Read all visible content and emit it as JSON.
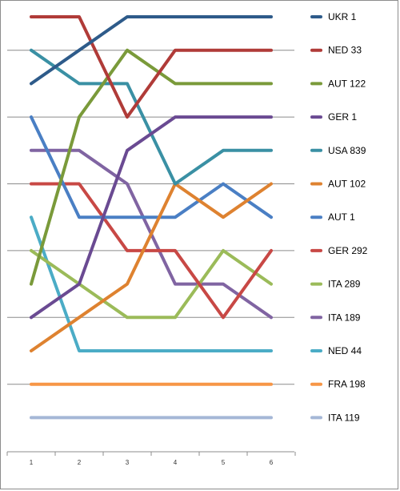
{
  "chart_data": {
    "type": "line",
    "title": "",
    "xlabel": "",
    "ylabel": "",
    "x": [
      1,
      2,
      3,
      4,
      5,
      6
    ],
    "x_tick_labels": [
      "1",
      "2",
      "3",
      "4",
      "5",
      "6"
    ],
    "ylim": [
      1,
      13
    ],
    "y_inverted": true,
    "grid": "horizontal",
    "legend_position": "right",
    "series": [
      {
        "name": "UKR 1",
        "color": "#2e5b8a",
        "values": [
          3,
          2,
          1,
          1,
          1,
          1
        ]
      },
      {
        "name": "NED 33",
        "color": "#b03b38",
        "values": [
          1,
          1,
          4,
          2,
          2,
          2
        ]
      },
      {
        "name": "AUT 122",
        "color": "#7a9a3a",
        "values": [
          9,
          4,
          2,
          3,
          3,
          3
        ]
      },
      {
        "name": "GER 1",
        "color": "#6a4a92",
        "values": [
          10,
          9,
          5,
          4,
          4,
          4
        ]
      },
      {
        "name": "USA 839",
        "color": "#3a90a4",
        "values": [
          2,
          3,
          3,
          6,
          5,
          5
        ]
      },
      {
        "name": "AUT 102",
        "color": "#de8230",
        "values": [
          11,
          10,
          9,
          6,
          7,
          6
        ]
      },
      {
        "name": "AUT 1",
        "color": "#4a7fc4",
        "values": [
          4,
          7,
          7,
          7,
          6,
          7
        ]
      },
      {
        "name": "GER 292",
        "color": "#c84845",
        "values": [
          6,
          6,
          8,
          8,
          10,
          8
        ]
      },
      {
        "name": "ITA 289",
        "color": "#9bbb59",
        "values": [
          8,
          9,
          10,
          10,
          8,
          9
        ]
      },
      {
        "name": "ITA 189",
        "color": "#8064a2",
        "values": [
          5,
          5,
          6,
          9,
          9,
          10
        ]
      },
      {
        "name": "NED 44",
        "color": "#4bacc6",
        "values": [
          7,
          11,
          11,
          11,
          11,
          11
        ]
      },
      {
        "name": "FRA 198",
        "color": "#f79646",
        "values": [
          12,
          12,
          12,
          12,
          12,
          12
        ]
      },
      {
        "name": "ITA 119",
        "color": "#a5b7d6",
        "values": [
          13,
          13,
          13,
          13,
          13,
          13
        ]
      }
    ]
  }
}
